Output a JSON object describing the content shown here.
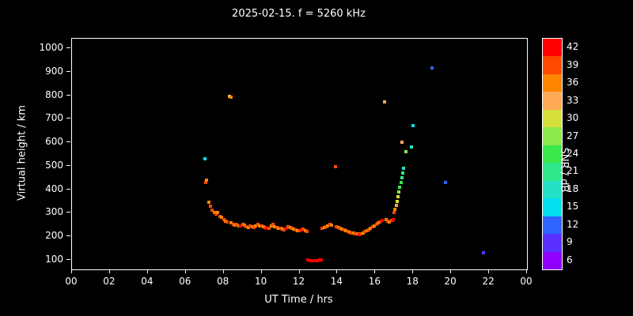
{
  "title": "2025-02-15. f = 5260 kHz",
  "chart_data": {
    "type": "scatter",
    "title": "2025-02-15. f = 5260 kHz",
    "xlabel": "UT Time / hrs",
    "ylabel": "Virtual height / km",
    "colorbar_label": "SNR / dB",
    "background": "#000000",
    "text_color": "#ffffff",
    "grid": false,
    "xlim": [
      0,
      24
    ],
    "ylim_display": [
      60,
      1040
    ],
    "xticks": {
      "values": [
        0,
        2,
        4,
        6,
        8,
        10,
        12,
        14,
        16,
        18,
        20,
        22,
        24
      ],
      "labels": [
        "00",
        "02",
        "04",
        "06",
        "08",
        "10",
        "12",
        "14",
        "16",
        "18",
        "20",
        "22",
        "00"
      ]
    },
    "yticks": {
      "values": [
        100,
        200,
        300,
        400,
        500,
        600,
        700,
        800,
        900,
        1000
      ],
      "labels": [
        "100",
        "200",
        "300",
        "400",
        "500",
        "600",
        "700",
        "800",
        "900",
        "1000"
      ]
    },
    "colorbar": {
      "min": 4.5,
      "max": 43.5,
      "tick_values": [
        42,
        39,
        36,
        33,
        30,
        27,
        24,
        21,
        18,
        15,
        12,
        9,
        6
      ],
      "tick_labels": [
        "42",
        "39",
        "36",
        "33",
        "30",
        "27",
        "24",
        "21",
        "18",
        "15",
        "12",
        "9",
        "6"
      ],
      "palette": {
        "42": "#ff0000",
        "39": "#ff4800",
        "36": "#ff8400",
        "33": "#ffaa55",
        "30": "#d6e03c",
        "27": "#8ce84c",
        "24": "#3ce84c",
        "21": "#2fe88c",
        "18": "#24e0c4",
        "15": "#00e0f0",
        "12": "#2e64ff",
        "9": "#5a30ff",
        "6": "#9000ff"
      }
    },
    "points_format": [
      "ut_hours",
      "virtual_height_km",
      "snr_db"
    ],
    "points": [
      [
        7.0,
        530,
        15
      ],
      [
        7.05,
        430,
        39
      ],
      [
        7.1,
        438,
        36
      ],
      [
        7.2,
        345,
        36
      ],
      [
        7.3,
        330,
        39
      ],
      [
        7.4,
        312,
        39
      ],
      [
        7.5,
        300,
        36
      ],
      [
        7.6,
        294,
        39
      ],
      [
        7.7,
        300,
        36
      ],
      [
        7.8,
        286,
        39
      ],
      [
        7.9,
        280,
        36
      ],
      [
        8.0,
        272,
        39
      ],
      [
        8.1,
        266,
        36
      ],
      [
        8.2,
        262,
        39
      ],
      [
        8.3,
        795,
        33
      ],
      [
        8.37,
        790,
        36
      ],
      [
        8.4,
        258,
        36
      ],
      [
        8.5,
        252,
        39
      ],
      [
        8.6,
        248,
        36
      ],
      [
        8.7,
        252,
        39
      ],
      [
        8.8,
        246,
        36
      ],
      [
        8.9,
        243,
        42
      ],
      [
        9.0,
        250,
        39
      ],
      [
        9.1,
        247,
        36
      ],
      [
        9.2,
        241,
        39
      ],
      [
        9.3,
        238,
        36
      ],
      [
        9.4,
        246,
        39
      ],
      [
        9.5,
        241,
        36
      ],
      [
        9.6,
        238,
        39
      ],
      [
        9.7,
        243,
        36
      ],
      [
        9.8,
        250,
        39
      ],
      [
        9.9,
        246,
        36
      ],
      [
        10.0,
        244,
        39
      ],
      [
        10.1,
        240,
        36
      ],
      [
        10.2,
        238,
        39
      ],
      [
        10.3,
        236,
        42
      ],
      [
        10.4,
        234,
        39
      ],
      [
        10.5,
        246,
        36
      ],
      [
        10.6,
        252,
        39
      ],
      [
        10.7,
        242,
        36
      ],
      [
        10.8,
        238,
        39
      ],
      [
        10.9,
        236,
        36
      ],
      [
        11.0,
        234,
        39
      ],
      [
        11.1,
        231,
        36
      ],
      [
        11.2,
        229,
        39
      ],
      [
        11.3,
        236,
        42
      ],
      [
        11.4,
        242,
        39
      ],
      [
        11.5,
        237,
        36
      ],
      [
        11.6,
        233,
        39
      ],
      [
        11.7,
        230,
        36
      ],
      [
        11.8,
        228,
        39
      ],
      [
        11.9,
        226,
        36
      ],
      [
        12.0,
        224,
        39
      ],
      [
        12.1,
        229,
        42
      ],
      [
        12.2,
        232,
        39
      ],
      [
        12.3,
        226,
        36
      ],
      [
        12.4,
        222,
        39
      ],
      [
        12.45,
        100,
        42
      ],
      [
        12.55,
        98,
        42
      ],
      [
        12.65,
        97,
        42
      ],
      [
        12.75,
        96,
        42
      ],
      [
        12.85,
        96,
        42
      ],
      [
        12.95,
        97,
        42
      ],
      [
        13.05,
        99,
        42
      ],
      [
        13.15,
        101,
        42
      ],
      [
        13.2,
        233,
        39
      ],
      [
        13.3,
        238,
        36
      ],
      [
        13.4,
        242,
        39
      ],
      [
        13.5,
        246,
        36
      ],
      [
        13.6,
        250,
        39
      ],
      [
        13.7,
        247,
        36
      ],
      [
        13.9,
        495,
        39
      ],
      [
        13.95,
        242,
        39
      ],
      [
        14.05,
        238,
        36
      ],
      [
        14.15,
        234,
        39
      ],
      [
        14.25,
        230,
        36
      ],
      [
        14.35,
        227,
        39
      ],
      [
        14.45,
        224,
        36
      ],
      [
        14.55,
        221,
        39
      ],
      [
        14.65,
        218,
        36
      ],
      [
        14.75,
        216,
        39
      ],
      [
        14.85,
        214,
        36
      ],
      [
        14.95,
        212,
        39
      ],
      [
        15.05,
        210,
        36
      ],
      [
        15.15,
        208,
        42
      ],
      [
        15.25,
        212,
        39
      ],
      [
        15.35,
        216,
        36
      ],
      [
        15.45,
        220,
        39
      ],
      [
        15.55,
        224,
        36
      ],
      [
        15.65,
        229,
        39
      ],
      [
        15.75,
        234,
        36
      ],
      [
        15.85,
        240,
        39
      ],
      [
        15.95,
        246,
        36
      ],
      [
        16.05,
        252,
        39
      ],
      [
        16.15,
        258,
        36
      ],
      [
        16.25,
        263,
        39
      ],
      [
        16.35,
        268,
        42
      ],
      [
        16.5,
        770,
        33
      ],
      [
        16.55,
        272,
        36
      ],
      [
        16.65,
        266,
        39
      ],
      [
        16.75,
        262,
        36
      ],
      [
        16.85,
        268,
        39
      ],
      [
        16.95,
        273,
        42
      ],
      [
        17.0,
        300,
        39
      ],
      [
        17.05,
        315,
        36
      ],
      [
        17.1,
        332,
        33
      ],
      [
        17.15,
        350,
        30
      ],
      [
        17.2,
        368,
        30
      ],
      [
        17.25,
        388,
        27
      ],
      [
        17.3,
        408,
        24
      ],
      [
        17.35,
        428,
        24
      ],
      [
        17.4,
        448,
        21
      ],
      [
        17.45,
        468,
        21
      ],
      [
        17.5,
        488,
        18
      ],
      [
        17.4,
        600,
        33
      ],
      [
        17.6,
        560,
        27
      ],
      [
        17.9,
        580,
        18
      ],
      [
        18.0,
        670,
        15
      ],
      [
        19.0,
        915,
        12
      ],
      [
        19.7,
        430,
        12
      ],
      [
        21.7,
        130,
        9
      ]
    ]
  }
}
